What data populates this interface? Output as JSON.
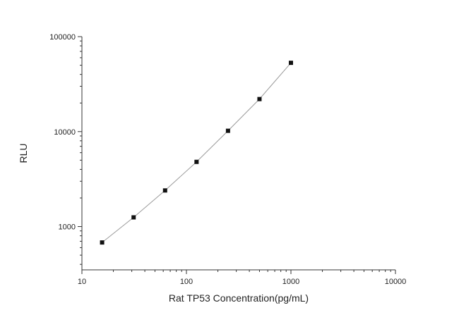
{
  "chart_data": {
    "type": "scatter",
    "title": "",
    "xlabel": "Rat TP53 Concentration(pg/mL)",
    "ylabel": "RLU",
    "x_scale": "log",
    "y_scale": "log",
    "xlim": [
      10,
      10000
    ],
    "ylim": [
      350,
      100000
    ],
    "x_ticks": [
      10,
      100,
      1000,
      10000
    ],
    "x_tick_labels": [
      "10",
      "100",
      "1000",
      "10000"
    ],
    "y_ticks": [
      1000,
      10000,
      100000
    ],
    "y_tick_labels": [
      "1000",
      "10000",
      "100000"
    ],
    "grid": false,
    "legend": "none",
    "series": [
      {
        "x": [
          15.6,
          31.25,
          62.5,
          125,
          250,
          500,
          1000
        ],
        "y": [
          680,
          1250,
          2400,
          4800,
          10200,
          22000,
          53000
        ],
        "marker": "square",
        "fit_line": true
      }
    ],
    "colors": {
      "marker": "#111111",
      "fit_line": "#9a9a9a",
      "axis": "#333333"
    }
  }
}
